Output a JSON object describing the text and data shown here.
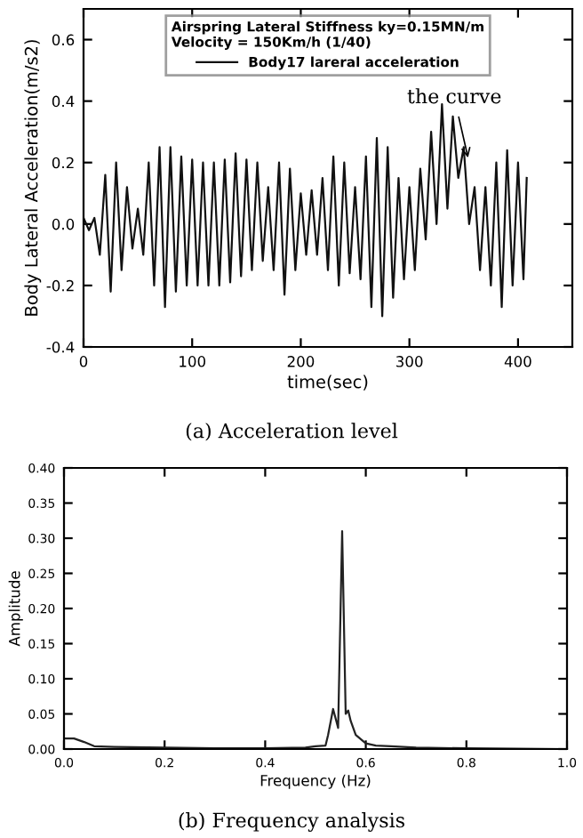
{
  "chart_data": [
    {
      "type": "line",
      "xlabel": "time(sec)",
      "ylabel": "Body Lateral Acceleration(m/s2)",
      "legend_title": "Airspring Lateral Stiffness ky=0.15MN/m\nVelocity = 150Km/h (1/40)",
      "legend": "top",
      "grid": false,
      "xlim": [
        0,
        450
      ],
      "xticks": [
        0,
        100,
        200,
        300,
        400
      ],
      "ylim": [
        -0.4,
        0.7
      ],
      "yticks": [
        {
          "value": -0.4,
          "label": "-0.4"
        },
        {
          "value": -0.2,
          "label": "-0.2"
        },
        {
          "value": 0,
          "label": "0.0"
        },
        {
          "value": 0.2,
          "label": "0.2"
        },
        {
          "value": 0.4,
          "label": "0.4"
        },
        {
          "value": 0.6,
          "label": "0.6"
        }
      ],
      "annotations": [
        {
          "text": "the curve",
          "x": 355,
          "y": 0.2
        },
        "(a) Acceleration level"
      ],
      "series": [
        {
          "name": "Body17 lareral acceleration",
          "color": "#111111",
          "x": [
            0,
            5,
            10,
            15,
            20,
            25,
            30,
            35,
            40,
            45,
            50,
            55,
            60,
            65,
            70,
            75,
            80,
            85,
            90,
            95,
            100,
            105,
            110,
            115,
            120,
            125,
            130,
            135,
            140,
            145,
            150,
            155,
            160,
            165,
            170,
            175,
            180,
            185,
            190,
            195,
            200,
            205,
            210,
            215,
            220,
            225,
            230,
            235,
            240,
            245,
            250,
            255,
            260,
            265,
            270,
            275,
            280,
            285,
            290,
            295,
            300,
            305,
            310,
            315,
            320,
            325,
            330,
            335,
            340,
            345,
            350,
            355,
            360,
            365,
            370,
            375,
            380,
            385,
            390,
            395,
            400,
            405,
            408
          ],
          "values": [
            0.02,
            -0.02,
            0.02,
            -0.1,
            0.16,
            -0.22,
            0.2,
            -0.15,
            0.12,
            -0.08,
            0.05,
            -0.1,
            0.2,
            -0.2,
            0.25,
            -0.27,
            0.25,
            -0.22,
            0.22,
            -0.2,
            0.21,
            -0.2,
            0.2,
            -0.2,
            0.2,
            -0.2,
            0.21,
            -0.19,
            0.23,
            -0.17,
            0.21,
            -0.15,
            0.2,
            -0.12,
            0.12,
            -0.15,
            0.2,
            -0.23,
            0.18,
            -0.15,
            0.1,
            -0.1,
            0.11,
            -0.1,
            0.15,
            -0.15,
            0.22,
            -0.2,
            0.2,
            -0.16,
            0.12,
            -0.18,
            0.22,
            -0.27,
            0.28,
            -0.3,
            0.25,
            -0.24,
            0.15,
            -0.18,
            0.12,
            -0.15,
            0.18,
            -0.05,
            0.3,
            0.0,
            0.39,
            0.05,
            0.35,
            0.15,
            0.25,
            0.0,
            0.12,
            -0.15,
            0.12,
            -0.2,
            0.2,
            -0.27,
            0.24,
            -0.2,
            0.2,
            -0.18,
            0.15
          ]
        }
      ]
    },
    {
      "type": "line",
      "xlabel": "Frequency (Hz)",
      "ylabel": "Amplitude",
      "legend": false,
      "grid": false,
      "xlim": [
        0,
        1
      ],
      "xticks": [
        {
          "value": 0,
          "label": "0.0"
        },
        {
          "value": 0.2,
          "label": "0.2"
        },
        {
          "value": 0.4,
          "label": "0.4"
        },
        {
          "value": 0.6,
          "label": "0.6"
        },
        {
          "value": 0.8,
          "label": "0.8"
        },
        {
          "value": 1,
          "label": "1.0"
        }
      ],
      "ylim": [
        0,
        0.4
      ],
      "yticks": [
        {
          "value": 0,
          "label": "0.00"
        },
        {
          "value": 0.05,
          "label": "0.05"
        },
        {
          "value": 0.1,
          "label": "0.10"
        },
        {
          "value": 0.15,
          "label": "0.15"
        },
        {
          "value": 0.2,
          "label": "0.20"
        },
        {
          "value": 0.25,
          "label": "0.25"
        },
        {
          "value": 0.3,
          "label": "0.30"
        },
        {
          "value": 0.35,
          "label": "0.35"
        },
        {
          "value": 0.4,
          "label": "0.40"
        }
      ],
      "annotations": [
        "(b) Frequency analysis"
      ],
      "series": [
        {
          "color": "#222222",
          "x": [
            0,
            0.02,
            0.04,
            0.06,
            0.1,
            0.2,
            0.3,
            0.4,
            0.48,
            0.5,
            0.52,
            0.525,
            0.535,
            0.545,
            0.553,
            0.56,
            0.565,
            0.57,
            0.58,
            0.6,
            0.62,
            0.65,
            0.7,
            0.8,
            1.0
          ],
          "values": [
            0.015,
            0.015,
            0.01,
            0.004,
            0.003,
            0.002,
            0.001,
            0.001,
            0.002,
            0.004,
            0.005,
            0.02,
            0.057,
            0.03,
            0.31,
            0.05,
            0.055,
            0.04,
            0.02,
            0.008,
            0.005,
            0.004,
            0.002,
            0.001,
            0.0
          ]
        }
      ]
    }
  ]
}
